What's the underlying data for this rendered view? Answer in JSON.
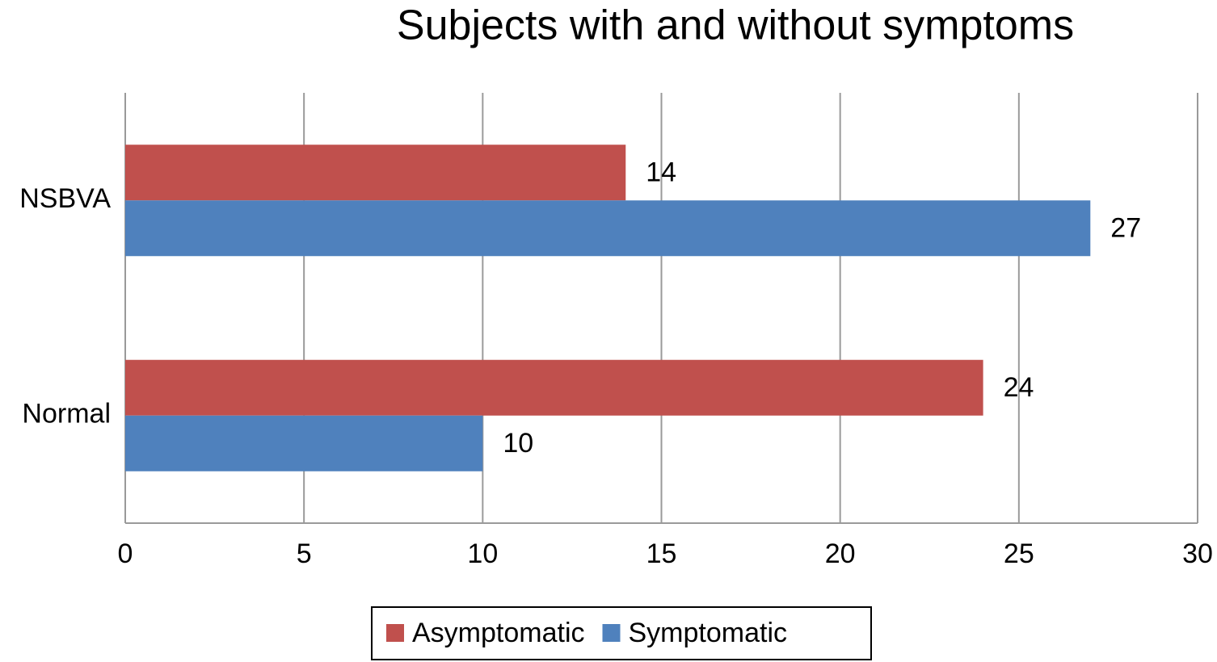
{
  "chart_data": {
    "type": "hbar",
    "title": "Subjects with and without symptoms",
    "categories": [
      "NSBVA",
      "Normal"
    ],
    "series": [
      {
        "name": "Asymptomatic",
        "color": "#c0504d",
        "values": [
          14,
          24
        ]
      },
      {
        "name": "Symptomatic",
        "color": "#4f81bd",
        "values": [
          27,
          10
        ]
      }
    ],
    "xlim": [
      0,
      30
    ],
    "xticks": [
      0,
      5,
      10,
      15,
      20,
      25,
      30
    ],
    "grid": true,
    "legend": "bottom"
  }
}
